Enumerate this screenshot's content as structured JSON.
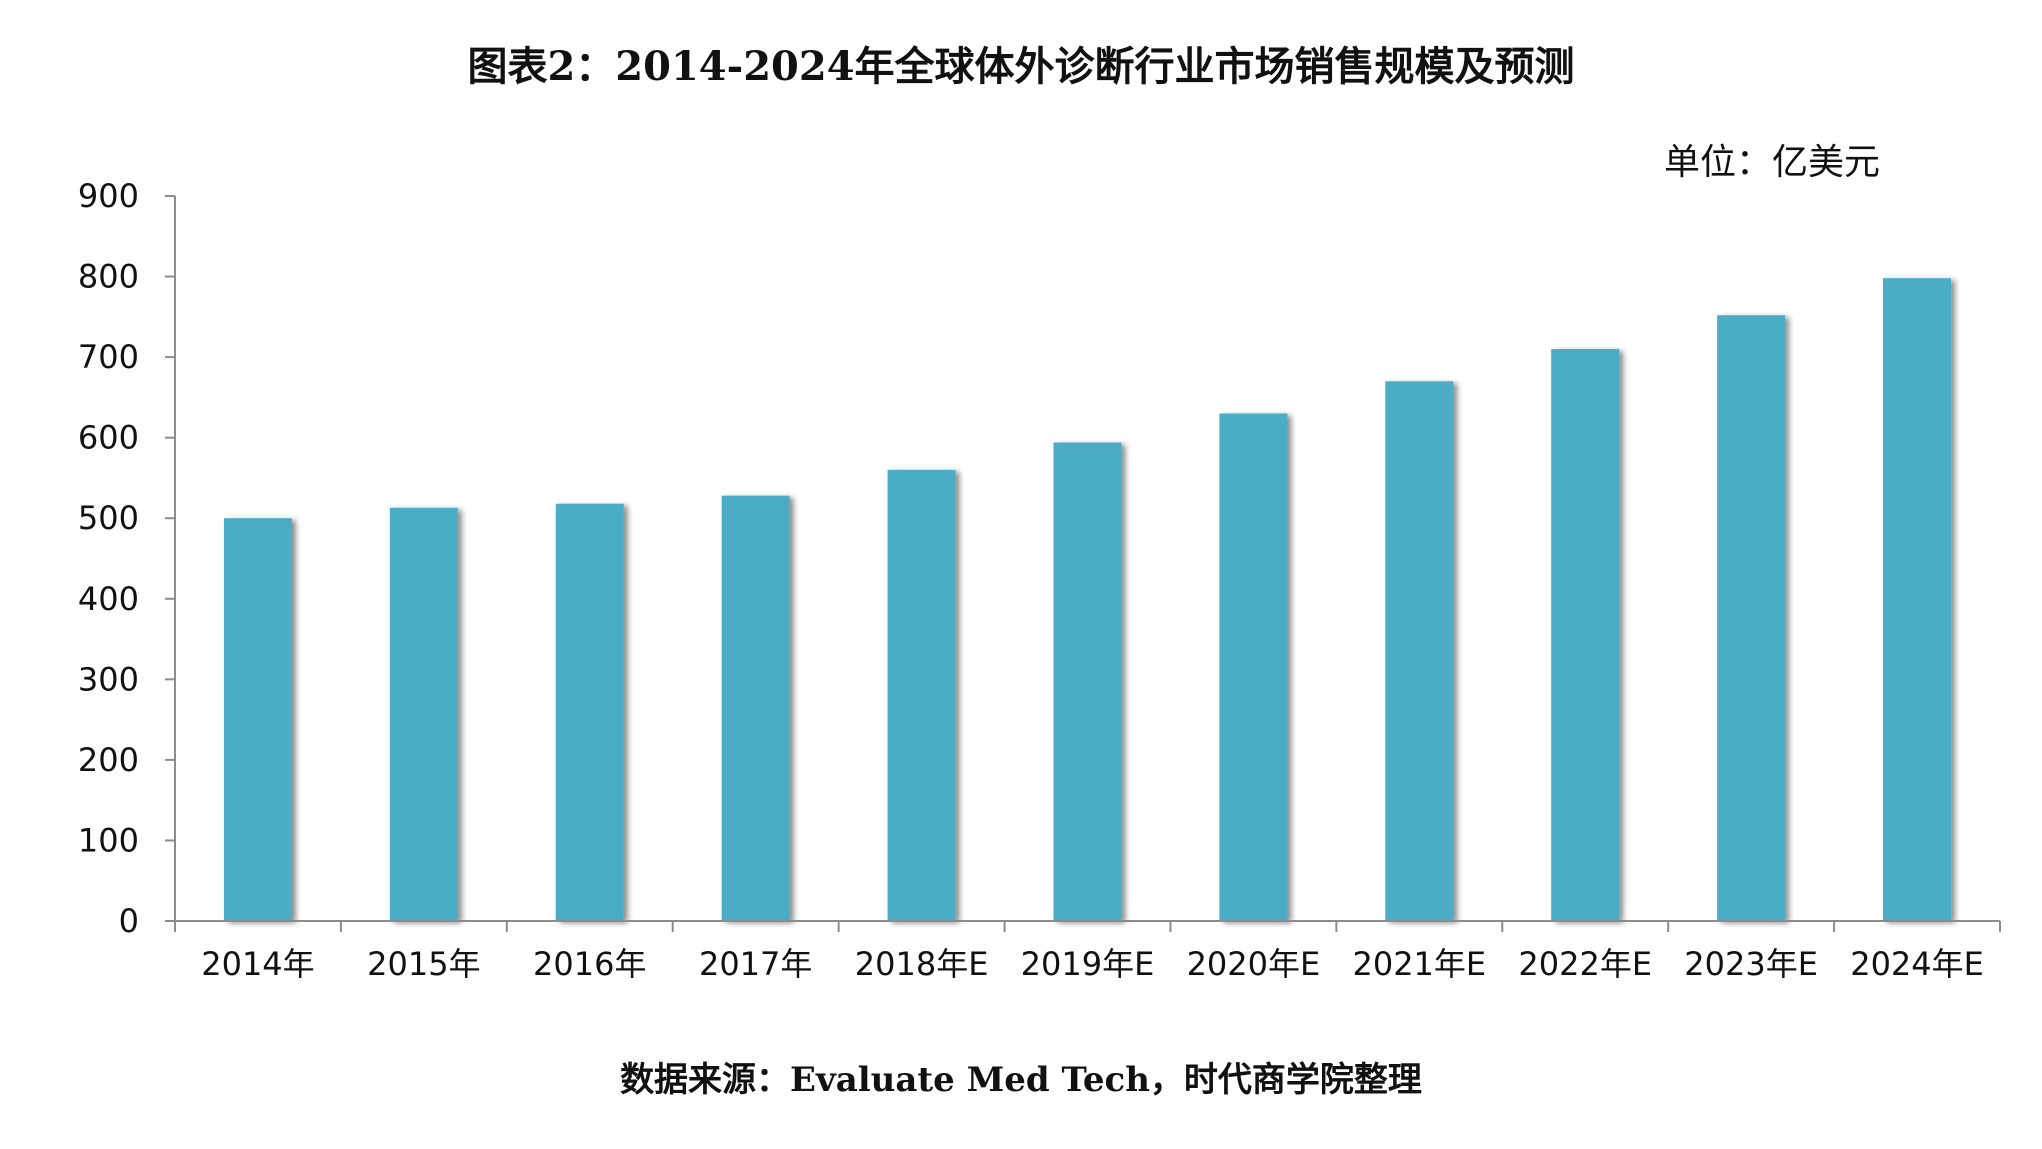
{
  "title": "图表2：2014-2024年全球体外诊断行业市场销售规模及预测",
  "unit_label": "单位：亿美元",
  "source": "数据来源：Evaluate Med Tech，时代商学院整理",
  "colors": {
    "bar": "#4BACC6",
    "axis": "#8c8c8c"
  },
  "chart_data": {
    "type": "bar",
    "categories": [
      "2014年",
      "2015年",
      "2016年",
      "2017年",
      "2018年E",
      "2019年E",
      "2020年E",
      "2021年E",
      "2022年E",
      "2023年E",
      "2024年E"
    ],
    "values": [
      500,
      513,
      518,
      528,
      560,
      594,
      630,
      670,
      710,
      752,
      798
    ],
    "ylim": [
      0,
      900
    ],
    "yticks": [
      0,
      100,
      200,
      300,
      400,
      500,
      600,
      700,
      800,
      900
    ],
    "xlabel": "",
    "ylabel": "",
    "grid": false,
    "legend": "none"
  }
}
